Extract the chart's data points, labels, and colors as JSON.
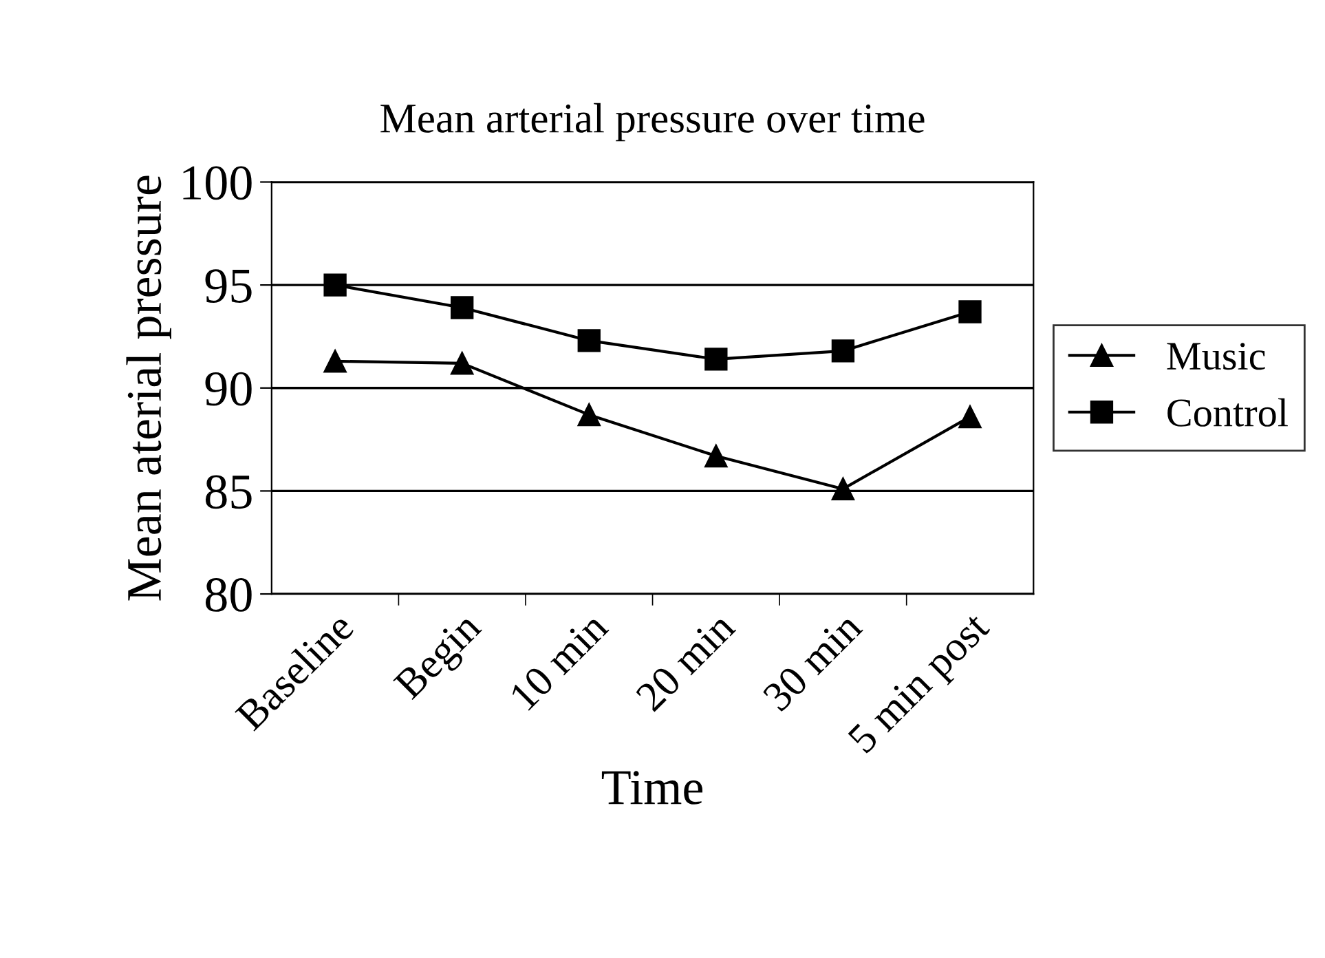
{
  "chart_data": {
    "type": "line",
    "title": "Mean arterial pressure over time",
    "xlabel": "Time",
    "ylabel": "Mean aterial pressure",
    "categories": [
      "Baseline",
      "Begin",
      "10 min",
      "20 min",
      "30 min",
      "5 min post"
    ],
    "series": [
      {
        "name": "Music",
        "color": "#000000",
        "marker": "triangle",
        "values": [
          91.3,
          91.2,
          88.7,
          86.7,
          85.1,
          88.6
        ]
      },
      {
        "name": "Control",
        "color": "#000000",
        "marker": "square",
        "values": [
          95.0,
          93.9,
          92.3,
          91.4,
          91.8,
          93.7
        ]
      }
    ],
    "ylim": [
      80,
      100
    ],
    "yticks": [
      80,
      85,
      90,
      95,
      100
    ],
    "grid": "y",
    "legend": "right",
    "line_style": "solid"
  }
}
